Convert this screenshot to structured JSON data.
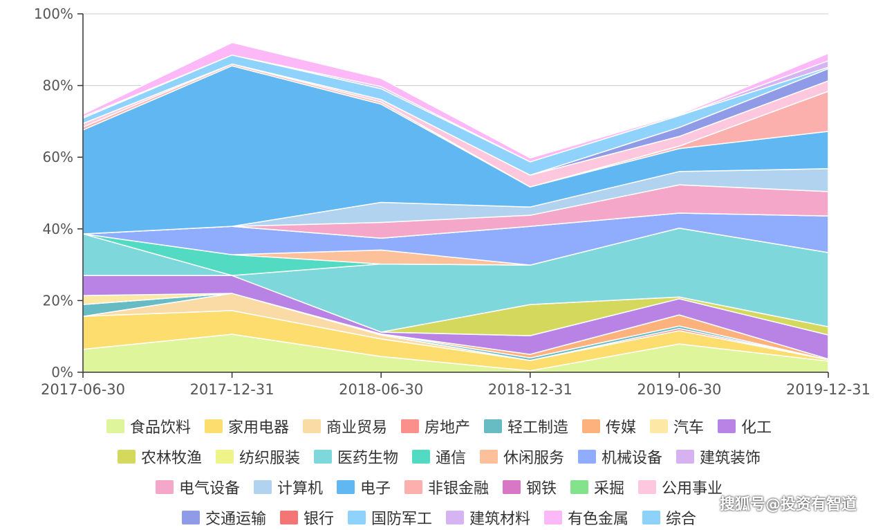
{
  "chart_data": {
    "type": "area",
    "stacked": true,
    "categories": [
      "2017-06-30",
      "2017-12-31",
      "2018-06-30",
      "2018-12-31",
      "2019-06-30",
      "2019-12-31"
    ],
    "ylim": [
      0,
      100
    ],
    "yticks": [
      "0%",
      "20%",
      "40%",
      "60%",
      "80%",
      "100%"
    ],
    "grid": true,
    "legend_position": "bottom",
    "series": [
      {
        "name": "食品饮料",
        "color": "#dff59b",
        "values": [
          6.4,
          10.6,
          4.4,
          0.4,
          7.9,
          3.1
        ]
      },
      {
        "name": "家用电器",
        "color": "#fddd6e",
        "values": [
          9.2,
          6.6,
          4.9,
          2.9,
          3.7,
          0.4
        ]
      },
      {
        "name": "商业贸易",
        "color": "#fbdba5",
        "values": [
          0,
          4.8,
          1.1,
          0,
          0,
          0
        ]
      },
      {
        "name": "房地产",
        "color": "#fb8f8a",
        "values": [
          0,
          0,
          0,
          0,
          0.6,
          0
        ]
      },
      {
        "name": "轻工制造",
        "color": "#67bcc4",
        "values": [
          3.3,
          0,
          0.3,
          0.7,
          0.7,
          0
        ]
      },
      {
        "name": "传媒",
        "color": "#fdb17d",
        "values": [
          0,
          0,
          0,
          1.0,
          3.1,
          0.2
        ]
      },
      {
        "name": "汽车",
        "color": "#fde9a5",
        "values": [
          2.5,
          0,
          0,
          0,
          0,
          0
        ]
      },
      {
        "name": "化工",
        "color": "#b983e5",
        "values": [
          5.6,
          5.0,
          0.5,
          5.2,
          4.5,
          6.7
        ]
      },
      {
        "name": "农林牧渔",
        "color": "#d4d95e",
        "values": [
          0,
          0,
          0,
          8.7,
          0.5,
          2.3
        ]
      },
      {
        "name": "纺织服装",
        "color": "#eef487",
        "values": [
          0,
          0,
          0,
          0,
          0,
          0
        ]
      },
      {
        "name": "医药生物",
        "color": "#7ed7db",
        "values": [
          11.6,
          0,
          19.0,
          11.0,
          19.2,
          20.7
        ]
      },
      {
        "name": "通信",
        "color": "#52dbc2",
        "values": [
          0,
          5.8,
          0,
          0,
          0,
          0
        ]
      },
      {
        "name": "休闲服务",
        "color": "#fcc09a",
        "values": [
          0,
          0,
          3.9,
          0,
          0,
          0
        ]
      },
      {
        "name": "机械设备",
        "color": "#8fadfc",
        "values": [
          0,
          7.9,
          3.3,
          10.8,
          4.2,
          10.2
        ]
      },
      {
        "name": "建筑装饰",
        "color": "#d6b2f0",
        "values": [
          0,
          0,
          0,
          0,
          0,
          0
        ]
      },
      {
        "name": "电气设备",
        "color": "#f4a7c9",
        "values": [
          0,
          0,
          4.4,
          3.1,
          7.9,
          6.8
        ]
      },
      {
        "name": "计算机",
        "color": "#b1d3ef",
        "values": [
          0,
          0,
          5.6,
          2.3,
          3.7,
          6.4
        ]
      },
      {
        "name": "电子",
        "color": "#60b7f2",
        "values": [
          29.0,
          44.8,
          27.4,
          5.6,
          6.4,
          10.4
        ]
      },
      {
        "name": "非银金融",
        "color": "#fbb0ad",
        "values": [
          0.8,
          0.5,
          0.6,
          0,
          0.7,
          11.2
        ]
      },
      {
        "name": "钢铁",
        "color": "#d877c6",
        "values": [
          0,
          0,
          0,
          0,
          0,
          0
        ]
      },
      {
        "name": "采掘",
        "color": "#85e28c",
        "values": [
          0,
          0,
          0,
          0,
          0,
          0
        ]
      },
      {
        "name": "公用事业",
        "color": "#fdc8dd",
        "values": [
          1.0,
          0,
          0.7,
          3.3,
          2.7,
          2.9
        ]
      },
      {
        "name": "交通运输",
        "color": "#8f9be6",
        "values": [
          0,
          0,
          0,
          0,
          2.5,
          3.4
        ]
      },
      {
        "name": "银行",
        "color": "#f47575",
        "values": [
          0,
          0,
          0,
          0,
          0,
          0
        ]
      },
      {
        "name": "国防军工",
        "color": "#8fd3fc",
        "values": [
          1.5,
          2.5,
          3.0,
          3.7,
          3.3,
          0.4
        ]
      },
      {
        "name": "建筑材料",
        "color": "#d6b4f4",
        "values": [
          0.4,
          0,
          0.6,
          0,
          0,
          1.8
        ]
      },
      {
        "name": "有色金属",
        "color": "#fdb8f7",
        "values": [
          0.7,
          3.5,
          2.3,
          1.1,
          0.3,
          2.1
        ]
      },
      {
        "name": "综合",
        "color": "#8dd3f9",
        "values": [
          0,
          0,
          0,
          0,
          0,
          0
        ]
      }
    ]
  },
  "watermark": "搜狐号@投资有智道"
}
